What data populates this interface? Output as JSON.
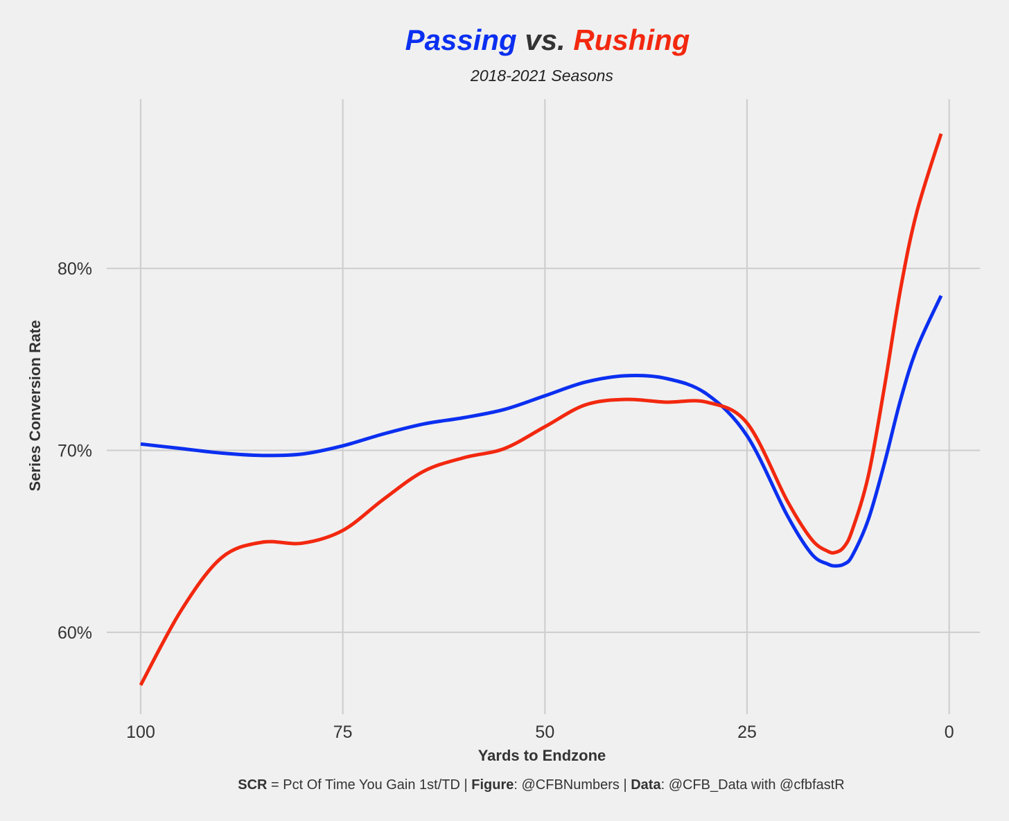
{
  "colors": {
    "passing": "#0b2ff0",
    "rushing": "#f2280f",
    "vs": "#333333",
    "background": "#f0f0f0",
    "grid": "#cfcfcf"
  },
  "title": {
    "passing": "Passing",
    "vs": "vs.",
    "rushing": "Rushing"
  },
  "caption": {
    "scr_label": "SCR",
    "scr_text": " = Pct Of Time You Gain 1st/TD | ",
    "figure_label": "Figure",
    "figure_text": ": @CFBNumbers | ",
    "data_label": "Data",
    "data_text": ": @CFB_Data with @cfbfastR"
  },
  "chart_data": {
    "type": "line",
    "title": "Passing vs. Rushing",
    "subtitle": "2018-2021 Seasons",
    "xlabel": "Yards to Endzone",
    "ylabel": "Series Conversion Rate",
    "x_reversed": true,
    "xlim": [
      104.2,
      -3.8
    ],
    "ylim": [
      55.5,
      89.3
    ],
    "x_ticks": [
      100,
      75,
      50,
      25,
      0
    ],
    "x_tick_labels": [
      "100",
      "75",
      "50",
      "25",
      "0"
    ],
    "y_ticks": [
      60,
      70,
      80
    ],
    "y_tick_labels": [
      "60%",
      "70%",
      "80%"
    ],
    "grid": true,
    "x": [
      100,
      95,
      90,
      85,
      80,
      75,
      70,
      65,
      60,
      55,
      50,
      45,
      40,
      35,
      30,
      25,
      20,
      17,
      15,
      14,
      13,
      12,
      10,
      8,
      6,
      4,
      1
    ],
    "series": [
      {
        "name": "Passing",
        "values": [
          70.35,
          70.1,
          69.85,
          69.72,
          69.8,
          70.25,
          70.9,
          71.45,
          71.8,
          72.25,
          73.0,
          73.75,
          74.1,
          73.95,
          73.1,
          70.8,
          66.4,
          64.3,
          63.75,
          63.65,
          63.75,
          64.2,
          66.2,
          69.3,
          72.8,
          75.6,
          78.5
        ]
      },
      {
        "name": "Rushing",
        "values": [
          57.1,
          61.2,
          64.1,
          64.95,
          64.9,
          65.6,
          67.3,
          68.85,
          69.6,
          70.1,
          71.3,
          72.5,
          72.8,
          72.65,
          72.65,
          71.5,
          67.2,
          65.1,
          64.45,
          64.4,
          64.7,
          65.6,
          68.6,
          73.5,
          78.9,
          83.1,
          87.4
        ]
      }
    ]
  }
}
